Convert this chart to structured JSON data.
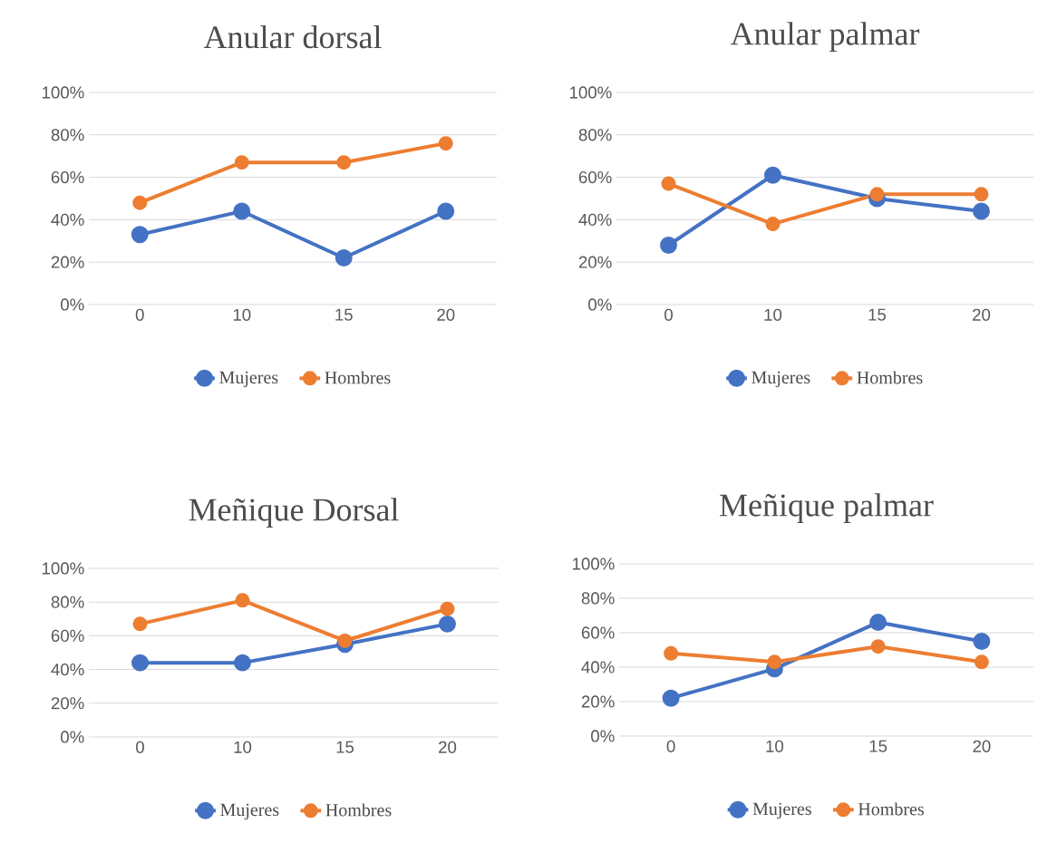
{
  "chart_data": [
    {
      "type": "line",
      "title": "Anular dorsal",
      "categories": [
        "0",
        "10",
        "15",
        "20"
      ],
      "ylim": [
        0,
        100
      ],
      "yticks": [
        {
          "value": 0,
          "label": "0%"
        },
        {
          "value": 20,
          "label": "20%"
        },
        {
          "value": 40,
          "label": "40%"
        },
        {
          "value": 60,
          "label": "60%"
        },
        {
          "value": 80,
          "label": "80%"
        },
        {
          "value": 100,
          "label": "100%"
        }
      ],
      "grid": "y",
      "legend": "bottom",
      "marker": "circle",
      "series": [
        {
          "name": "Mujeres",
          "color": "#4472c4",
          "values": [
            33,
            44,
            22,
            44
          ]
        },
        {
          "name": "Hombres",
          "color": "#ed7d31",
          "values": [
            48,
            67,
            67,
            76
          ]
        }
      ]
    },
    {
      "type": "line",
      "title": "Anular palmar",
      "categories": [
        "0",
        "10",
        "15",
        "20"
      ],
      "ylim": [
        0,
        100
      ],
      "yticks": [
        {
          "value": 0,
          "label": "0%"
        },
        {
          "value": 20,
          "label": "20%"
        },
        {
          "value": 40,
          "label": "40%"
        },
        {
          "value": 60,
          "label": "60%"
        },
        {
          "value": 80,
          "label": "80%"
        },
        {
          "value": 100,
          "label": "100%"
        }
      ],
      "grid": "y",
      "legend": "bottom",
      "marker": "circle",
      "series": [
        {
          "name": "Mujeres",
          "color": "#4472c4",
          "values": [
            28,
            61,
            50,
            44
          ]
        },
        {
          "name": "Hombres",
          "color": "#ed7d31",
          "values": [
            57,
            38,
            52,
            52
          ]
        }
      ]
    },
    {
      "type": "line",
      "title": "Meñique Dorsal",
      "categories": [
        "0",
        "10",
        "15",
        "20"
      ],
      "ylim": [
        0,
        100
      ],
      "yticks": [
        {
          "value": 0,
          "label": "0%"
        },
        {
          "value": 20,
          "label": "20%"
        },
        {
          "value": 40,
          "label": "40%"
        },
        {
          "value": 60,
          "label": "60%"
        },
        {
          "value": 80,
          "label": "80%"
        },
        {
          "value": 100,
          "label": "100%"
        }
      ],
      "grid": "y",
      "legend": "bottom",
      "marker": "circle",
      "series": [
        {
          "name": "Mujeres",
          "color": "#4472c4",
          "values": [
            44,
            44,
            55,
            67
          ]
        },
        {
          "name": "Hombres",
          "color": "#ed7d31",
          "values": [
            67,
            81,
            57,
            76
          ]
        }
      ]
    },
    {
      "type": "line",
      "title": "Meñique palmar",
      "categories": [
        "0",
        "10",
        "15",
        "20"
      ],
      "ylim": [
        0,
        100
      ],
      "yticks": [
        {
          "value": 0,
          "label": "0%"
        },
        {
          "value": 20,
          "label": "20%"
        },
        {
          "value": 40,
          "label": "40%"
        },
        {
          "value": 60,
          "label": "60%"
        },
        {
          "value": 80,
          "label": "80%"
        },
        {
          "value": 100,
          "label": "100%"
        }
      ],
      "grid": "y",
      "legend": "bottom",
      "marker": "circle",
      "series": [
        {
          "name": "Mujeres",
          "color": "#4472c4",
          "values": [
            22,
            39,
            66,
            55
          ]
        },
        {
          "name": "Hombres",
          "color": "#ed7d31",
          "values": [
            48,
            43,
            52,
            43
          ]
        }
      ]
    }
  ]
}
